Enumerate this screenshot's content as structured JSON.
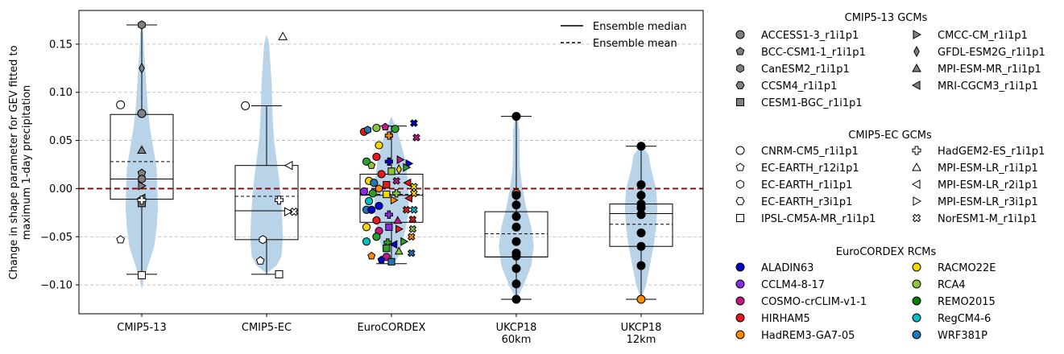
{
  "chart_data": {
    "type": "violin-box-scatter",
    "ylabel_line1": "Change in shape parameter for GEV fitted to",
    "ylabel_line2": "maximum 1-day precipitation",
    "ylim": [
      -0.13,
      0.185
    ],
    "yticks": [
      -0.1,
      -0.05,
      0.0,
      0.05,
      0.1,
      0.15
    ],
    "ytick_labels": [
      "−0.10",
      "−0.05",
      "0.00",
      "0.05",
      "0.10",
      "0.15"
    ],
    "reference_line": 0,
    "reference_color": "#8b0000",
    "violin_color": "#b9d3e8",
    "grid": "horizontal dashed",
    "categories": [
      {
        "label": [
          "CMIP5-13"
        ],
        "median": 0.01,
        "mean": 0.028,
        "q1": -0.011,
        "q3": 0.077,
        "wlo": -0.089,
        "whi": 0.17
      },
      {
        "label": [
          "CMIP5-EC"
        ],
        "median": -0.023,
        "mean": -0.008,
        "q1": -0.053,
        "q3": 0.024,
        "wlo": -0.089,
        "whi": 0.086
      },
      {
        "label": [
          "EuroCORDEX"
        ],
        "median": -0.007,
        "mean": -0.006,
        "q1": -0.035,
        "q3": 0.015,
        "wlo": -0.078,
        "whi": 0.065
      },
      {
        "label": [
          "UKCP18",
          "60km"
        ],
        "median": -0.071,
        "mean": -0.047,
        "q1": -0.071,
        "q3": -0.024,
        "wlo": -0.115,
        "whi": 0.075
      },
      {
        "label": [
          "UKCP18",
          "12km"
        ],
        "median": -0.026,
        "mean": -0.037,
        "q1": -0.06,
        "q3": -0.016,
        "wlo": -0.115,
        "whi": 0.044
      }
    ],
    "violins": [
      [
        [
          -0.105,
          0
        ],
        [
          -0.095,
          0.015
        ],
        [
          -0.08,
          0.05
        ],
        [
          -0.06,
          0.1
        ],
        [
          -0.04,
          0.12
        ],
        [
          -0.02,
          0.13
        ],
        [
          0.0,
          0.125
        ],
        [
          0.02,
          0.12
        ],
        [
          0.04,
          0.095
        ],
        [
          0.06,
          0.07
        ],
        [
          0.08,
          0.05
        ],
        [
          0.1,
          0.04
        ],
        [
          0.12,
          0.03
        ],
        [
          0.14,
          0.02
        ],
        [
          0.16,
          0.012
        ],
        [
          0.175,
          0
        ]
      ],
      [
        [
          -0.088,
          0
        ],
        [
          -0.08,
          0.08
        ],
        [
          -0.07,
          0.12
        ],
        [
          -0.05,
          0.13
        ],
        [
          -0.03,
          0.125
        ],
        [
          -0.01,
          0.115
        ],
        [
          0.01,
          0.1
        ],
        [
          0.03,
          0.08
        ],
        [
          0.05,
          0.06
        ],
        [
          0.07,
          0.05
        ],
        [
          0.09,
          0.045
        ],
        [
          0.11,
          0.04
        ],
        [
          0.13,
          0.03
        ],
        [
          0.15,
          0.02
        ],
        [
          0.16,
          0
        ]
      ],
      [
        [
          -0.08,
          0
        ],
        [
          -0.07,
          0.06
        ],
        [
          -0.05,
          0.1
        ],
        [
          -0.03,
          0.13
        ],
        [
          -0.01,
          0.14
        ],
        [
          0.01,
          0.13
        ],
        [
          0.03,
          0.11
        ],
        [
          0.05,
          0.07
        ],
        [
          0.065,
          0.03
        ],
        [
          0.075,
          0
        ]
      ],
      [
        [
          -0.115,
          0
        ],
        [
          -0.1,
          0.06
        ],
        [
          -0.08,
          0.12
        ],
        [
          -0.06,
          0.14
        ],
        [
          -0.04,
          0.12
        ],
        [
          -0.02,
          0.08
        ],
        [
          0.0,
          0.05
        ],
        [
          0.02,
          0.03
        ],
        [
          0.04,
          0.025
        ],
        [
          0.06,
          0.025
        ],
        [
          0.072,
          0.012
        ],
        [
          0.076,
          0
        ]
      ],
      [
        [
          -0.115,
          0
        ],
        [
          -0.1,
          0.04
        ],
        [
          -0.08,
          0.07
        ],
        [
          -0.06,
          0.1
        ],
        [
          -0.04,
          0.12
        ],
        [
          -0.02,
          0.13
        ],
        [
          0.0,
          0.12
        ],
        [
          0.02,
          0.08
        ],
        [
          0.035,
          0.06
        ],
        [
          0.045,
          0
        ]
      ]
    ],
    "points": [
      [
        [
          0,
          -0.17,
          0.087,
          "circle",
          "#ffffff"
        ],
        [
          0,
          0,
          0.17,
          "hexagon",
          "#808080"
        ],
        [
          0,
          0,
          0.125,
          "diamond",
          "#808080"
        ],
        [
          0,
          0,
          0.078,
          "circle",
          "#808080"
        ],
        [
          0,
          0,
          0.04,
          "triangle-up",
          "#808080"
        ],
        [
          0,
          0,
          0.016,
          "pentagon",
          "#808080"
        ],
        [
          0,
          0,
          0.01,
          "hexagon",
          "#808080"
        ],
        [
          0,
          0,
          0.003,
          "triangle-right",
          "#808080"
        ],
        [
          0,
          0,
          -0.01,
          "triangle-left",
          "#808080"
        ],
        [
          0,
          0,
          -0.015,
          "square",
          "#808080"
        ],
        [
          0,
          0,
          -0.012,
          "plus",
          "#ffffff"
        ],
        [
          0,
          0,
          -0.09,
          "square",
          "#ffffff"
        ],
        [
          0,
          -0.17,
          -0.053,
          "pentagon",
          "#ffffff"
        ]
      ],
      [
        [
          0,
          -0.17,
          0.086,
          "circle",
          "#ffffff"
        ],
        [
          0,
          0.13,
          0.158,
          "triangle-up",
          "#ffffff"
        ],
        [
          0,
          0.18,
          0.024,
          "triangle-left",
          "#ffffff"
        ],
        [
          0,
          0.1,
          -0.012,
          "plus",
          "#ffffff"
        ],
        [
          0,
          0.17,
          -0.024,
          "triangle-right",
          "#ffffff"
        ],
        [
          0,
          0.22,
          -0.024,
          "cross",
          "#ffffff"
        ],
        [
          0,
          -0.03,
          -0.053,
          "hexagon",
          "#ffffff"
        ],
        [
          0,
          -0.05,
          -0.075,
          "pentagon",
          "#ffffff"
        ],
        [
          0,
          0.1,
          -0.089,
          "square",
          "#ffffff"
        ]
      ]
    ],
    "point_groups": {
      "cmip5_13": 0,
      "cmip5_ec": 1
    },
    "euro_points": [
      [
        -0.22,
        0.059,
        "circle",
        "#e41a1c"
      ],
      [
        -0.19,
        0.061,
        "hexagon",
        "#1f78b4"
      ],
      [
        -0.12,
        0.063,
        "circle",
        "#8fc43a"
      ],
      [
        -0.05,
        0.064,
        "pentagon",
        "#c71585"
      ],
      [
        0.03,
        0.062,
        "circle",
        "#2ca02c"
      ],
      [
        0.18,
        0.068,
        "cross",
        "#0000c8"
      ],
      [
        0.2,
        0.053,
        "cross",
        "#c71585"
      ],
      [
        -0.1,
        0.045,
        "circle",
        "#f5d800"
      ],
      [
        -0.02,
        0.055,
        "plus",
        "#ff8c00"
      ],
      [
        -0.12,
        0.033,
        "circle",
        "#e41a1c"
      ],
      [
        -0.02,
        0.028,
        "plus",
        "#0000c8"
      ],
      [
        0.07,
        0.03,
        "triangle-right",
        "#c71585"
      ],
      [
        0.14,
        0.026,
        "triangle-right",
        "#0000c8"
      ],
      [
        -0.2,
        0.028,
        "circle",
        "#2ca02c"
      ],
      [
        -0.16,
        0.024,
        "pentagon",
        "#8fc43a"
      ],
      [
        0.0,
        0.018,
        "square",
        "#8fc43a"
      ],
      [
        0.06,
        0.02,
        "diamond",
        "#f5d800"
      ],
      [
        0.12,
        0.022,
        "triangle-right",
        "#2ca02c"
      ],
      [
        -0.08,
        0.015,
        "circle",
        "#e41a1c"
      ],
      [
        -0.18,
        0.008,
        "circle",
        "#f5d800"
      ],
      [
        -0.14,
        0.006,
        "circle",
        "#1f78b4"
      ],
      [
        -0.1,
        0.0,
        "hexagon",
        "#ff8c00"
      ],
      [
        -0.04,
        0.004,
        "square",
        "#e41a1c"
      ],
      [
        0.04,
        0.008,
        "cross",
        "#c71585"
      ],
      [
        0.13,
        0.006,
        "triangle-left",
        "#e41a1c"
      ],
      [
        0.18,
        0.002,
        "cross",
        "#f5d800"
      ],
      [
        -0.22,
        -0.003,
        "circle",
        "#8a2be2"
      ],
      [
        -0.15,
        -0.005,
        "circle",
        "#2ca02c"
      ],
      [
        -0.04,
        -0.006,
        "square",
        "#f5d800"
      ],
      [
        0.04,
        -0.005,
        "plus",
        "#8fc43a"
      ],
      [
        0.18,
        -0.005,
        "cross",
        "#f5d800"
      ],
      [
        -0.18,
        -0.013,
        "circle",
        "#00bfc4"
      ],
      [
        -0.1,
        -0.018,
        "circle",
        "#0000c8"
      ],
      [
        0.02,
        -0.012,
        "triangle-right",
        "#ff8c00"
      ],
      [
        0.14,
        -0.01,
        "triangle-left",
        "#e41a1c"
      ],
      [
        -0.2,
        -0.022,
        "circle",
        "#1f78b4"
      ],
      [
        -0.16,
        -0.022,
        "circle",
        "#0000c8"
      ],
      [
        -0.02,
        -0.027,
        "plus",
        "#8a2be2"
      ],
      [
        0.12,
        -0.022,
        "cross",
        "#e41a1c"
      ],
      [
        0.18,
        -0.022,
        "cross",
        "#00bfc4"
      ],
      [
        -0.12,
        -0.033,
        "circle",
        "#e41a1c"
      ],
      [
        0.05,
        -0.033,
        "triangle-up",
        "#c71585"
      ],
      [
        0.17,
        -0.032,
        "cross",
        "#e41a1c"
      ],
      [
        -0.2,
        -0.04,
        "circle",
        "#f5d800"
      ],
      [
        -0.1,
        -0.044,
        "circle",
        "#c71585"
      ],
      [
        -0.02,
        -0.04,
        "square",
        "#8a2be2"
      ],
      [
        0.06,
        -0.042,
        "triangle-right",
        "#e41a1c"
      ],
      [
        0.17,
        -0.042,
        "cross",
        "#8fc43a"
      ],
      [
        -0.2,
        -0.055,
        "circle",
        "#00bfc4"
      ],
      [
        -0.12,
        -0.05,
        "circle",
        "#2ca02c"
      ],
      [
        -0.03,
        -0.056,
        "plus",
        "#2ca02c"
      ],
      [
        0.02,
        -0.058,
        "triangle-left",
        "#0000c8"
      ],
      [
        0.1,
        -0.055,
        "triangle-right",
        "#2ca02c"
      ],
      [
        0.16,
        -0.05,
        "cross",
        "#ff8c00"
      ],
      [
        -0.04,
        -0.062,
        "square",
        "#2ca02c"
      ],
      [
        0.06,
        -0.065,
        "triangle-up",
        "#8fc43a"
      ],
      [
        0.16,
        -0.067,
        "cross",
        "#1f78b4"
      ],
      [
        -0.16,
        -0.07,
        "pentagon",
        "#ff8c00"
      ],
      [
        -0.04,
        -0.071,
        "circle",
        "#c71585"
      ],
      [
        0.0,
        -0.076,
        "square",
        "#1f78b4"
      ],
      [
        -0.08,
        -0.074,
        "pentagon",
        "#0000c8"
      ]
    ],
    "uk60_points": [
      [
        0,
        0.075,
        "#000000"
      ],
      [
        0,
        -0.005,
        "#ff8c00"
      ],
      [
        0,
        -0.007,
        "#000000"
      ],
      [
        0,
        -0.017,
        "#000000"
      ],
      [
        0,
        -0.029,
        "#000000"
      ],
      [
        0,
        -0.04,
        "#000000"
      ],
      [
        0,
        -0.055,
        "#000000"
      ],
      [
        0,
        -0.067,
        "#000000"
      ],
      [
        0,
        -0.07,
        "#000000"
      ],
      [
        0,
        -0.083,
        "#000000"
      ],
      [
        0,
        -0.099,
        "#000000"
      ],
      [
        0,
        -0.115,
        "#000000"
      ]
    ],
    "uk12_points": [
      [
        0,
        0.044,
        "#000000"
      ],
      [
        0,
        0.004,
        "#000000"
      ],
      [
        0,
        -0.007,
        "#000000"
      ],
      [
        0,
        -0.016,
        "#000000"
      ],
      [
        0,
        -0.02,
        "#000000"
      ],
      [
        0,
        -0.027,
        "#000000"
      ],
      [
        0,
        -0.046,
        "#000000"
      ],
      [
        0,
        -0.06,
        "#000000"
      ],
      [
        0,
        -0.08,
        "#000000"
      ],
      [
        0,
        -0.115,
        "#ff8c00"
      ]
    ],
    "ensemble_legend": [
      "Ensemble median",
      "Ensemble mean"
    ],
    "legend_cmip5_13": {
      "title": "CMIP5-13 GCMs",
      "left": [
        [
          "circle",
          "ACCESS1-3_r1i1p1"
        ],
        [
          "pentagon",
          "BCC-CSM1-1_r1i1p1"
        ],
        [
          "hexagon",
          "CanESM2_r1i1p1"
        ],
        [
          "hexagon2",
          "CCSM4_r1i1p1"
        ],
        [
          "square",
          "CESM1-BGC_r1i1p1"
        ]
      ],
      "right": [
        [
          "triangle-right",
          "CMCC-CM_r1i1p1"
        ],
        [
          "diamond",
          "GFDL-ESM2G_r1i1p1"
        ],
        [
          "triangle-up",
          "MPI-ESM-MR_r1i1p1"
        ],
        [
          "triangle-left",
          "MRI-CGCM3_r1i1p1"
        ]
      ]
    },
    "legend_cmip5_ec": {
      "title": "CMIP5-EC GCMs",
      "left": [
        [
          "circle",
          "CNRM-CM5_r1i1p1"
        ],
        [
          "pentagon",
          "EC-EARTH_r12i1p1"
        ],
        [
          "hexagon",
          "EC-EARTH_r1i1p1"
        ],
        [
          "hexagon2",
          "EC-EARTH_r3i1p1"
        ],
        [
          "square",
          "IPSL-CM5A-MR_r1i1p1"
        ]
      ],
      "right": [
        [
          "plus",
          "HadGEM2-ES_r1i1p1"
        ],
        [
          "triangle-up",
          "MPI-ESM-LR_r1i1p1"
        ],
        [
          "triangle-left",
          "MPI-ESM-LR_r2i1p1"
        ],
        [
          "triangle-right",
          "MPI-ESM-LR_r3i1p1"
        ],
        [
          "cross",
          "NorESM1-M_r1i1p1"
        ]
      ]
    },
    "legend_eurocordex": {
      "title": "EuroCORDEX RCMs",
      "left": [
        [
          "#0000c8",
          "ALADIN63"
        ],
        [
          "#8a2be2",
          "CCLM4-8-17"
        ],
        [
          "#c71585",
          "COSMO-crCLIM-v1-1"
        ],
        [
          "#e41a1c",
          "HIRHAM5"
        ],
        [
          "#ff8c00",
          "HadREM3-GA7-05"
        ]
      ],
      "right": [
        [
          "#f5d800",
          "RACMO22E"
        ],
        [
          "#8fc43a",
          "RCA4"
        ],
        [
          "#008000",
          "REMO2015"
        ],
        [
          "#00bfc4",
          "RegCM4-6"
        ],
        [
          "#1f78b4",
          "WRF381P"
        ]
      ]
    }
  }
}
